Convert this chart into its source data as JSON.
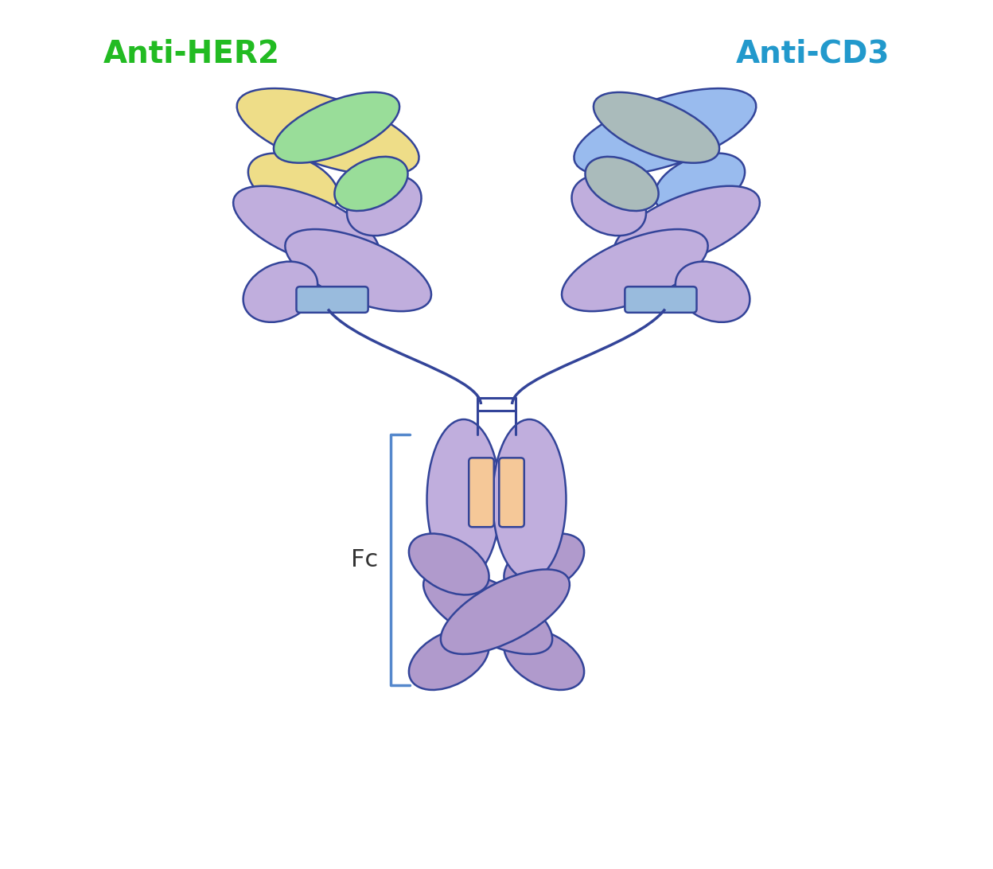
{
  "background_color": "#ffffff",
  "label_anti_her2": "Anti-HER2",
  "label_anti_cd3": "Anti-CD3",
  "label_fc": "Fc",
  "color_anti_her2_text": "#22bb22",
  "color_anti_cd3_text": "#2299cc",
  "color_fc_text": "#333333",
  "color_fc_bracket": "#5588cc",
  "color_purple_light": "#c0aedd",
  "color_purple_mid": "#b09acc",
  "color_yellow": "#eedd88",
  "color_green_light": "#99dd99",
  "color_blue_light": "#99bbee",
  "color_grey_light": "#aabbbb",
  "color_orange_light": "#f5c898",
  "color_hinge_rect": "#99bbdd",
  "color_outline": "#334499",
  "figsize": [
    12.48,
    10.92
  ],
  "dpi": 100
}
